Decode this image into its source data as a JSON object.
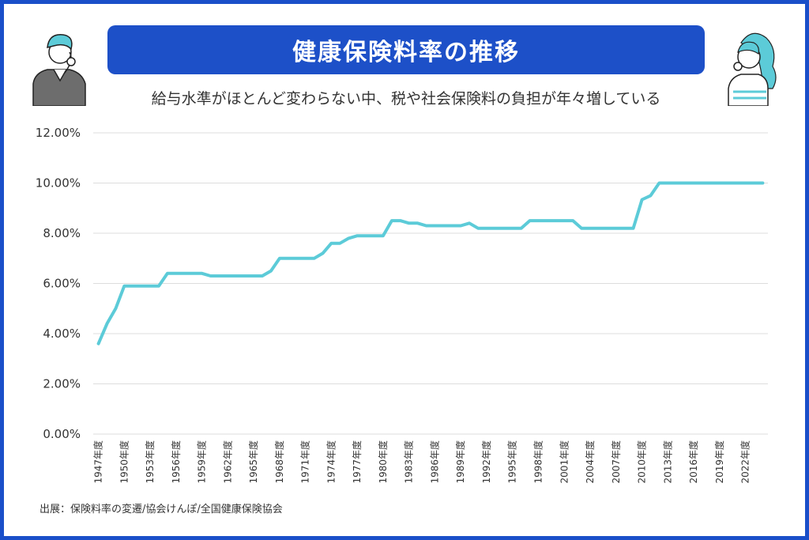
{
  "header": {
    "title": "健康保険料率の推移",
    "subtitle": "給与水準がほとんど変わらない中、税や社会保険料の負担が年々増している"
  },
  "footer": {
    "source": "出展：保険料率の変遷/協会けんぽ/全国健康保険協会"
  },
  "colors": {
    "border": "#1a4fc9",
    "banner": "#1d50c8",
    "line": "#5ccbd8",
    "grid": "#dddddd"
  },
  "icons": [
    "thinking-man-icon",
    "thinking-woman-icon"
  ],
  "chart_data": {
    "type": "line",
    "title": "健康保険料率の推移",
    "xlabel": "",
    "ylabel": "",
    "ylim": [
      0,
      12
    ],
    "grid": true,
    "y_ticks": [
      "0.00%",
      "2.00%",
      "4.00%",
      "6.00%",
      "8.00%",
      "10.00%",
      "12.00%"
    ],
    "x_ticks": [
      "1947年度",
      "1950年度",
      "1953年度",
      "1956年度",
      "1959年度",
      "1962年度",
      "1965年度",
      "1968年度",
      "1971年度",
      "1974年度",
      "1977年度",
      "1980年度",
      "1983年度",
      "1986年度",
      "1989年度",
      "1992年度",
      "1995年度",
      "1998年度",
      "2001年度",
      "2004年度",
      "2007年度",
      "2010年度",
      "2013年度",
      "2016年度",
      "2019年度",
      "2022年度"
    ],
    "series": [
      {
        "x": [
          1947,
          1948,
          1949,
          1950,
          1951,
          1952,
          1953,
          1954,
          1955,
          1956,
          1957,
          1958,
          1959,
          1960,
          1961,
          1962,
          1963,
          1964,
          1965,
          1966,
          1967,
          1968,
          1969,
          1970,
          1971,
          1972,
          1973,
          1974,
          1975,
          1976,
          1977,
          1978,
          1979,
          1980,
          1981,
          1982,
          1983,
          1984,
          1985,
          1986,
          1987,
          1988,
          1989,
          1990,
          1991,
          1992,
          1993,
          1994,
          1995,
          1996,
          1997,
          1998,
          1999,
          2000,
          2001,
          2002,
          2003,
          2004,
          2005,
          2006,
          2007,
          2008,
          2009,
          2010,
          2011,
          2012,
          2013,
          2014,
          2015,
          2016,
          2017,
          2018,
          2019,
          2020,
          2021,
          2022,
          2023,
          2024
        ],
        "values": [
          3.6,
          4.4,
          5.0,
          5.9,
          5.9,
          5.9,
          5.9,
          5.9,
          6.4,
          6.4,
          6.4,
          6.4,
          6.4,
          6.3,
          6.3,
          6.3,
          6.3,
          6.3,
          6.3,
          6.3,
          6.5,
          7.0,
          7.0,
          7.0,
          7.0,
          7.0,
          7.2,
          7.6,
          7.6,
          7.8,
          7.9,
          7.9,
          7.9,
          7.9,
          8.5,
          8.5,
          8.4,
          8.4,
          8.3,
          8.3,
          8.3,
          8.3,
          8.3,
          8.4,
          8.2,
          8.2,
          8.2,
          8.2,
          8.2,
          8.2,
          8.5,
          8.5,
          8.5,
          8.5,
          8.5,
          8.5,
          8.2,
          8.2,
          8.2,
          8.2,
          8.2,
          8.2,
          8.2,
          9.34,
          9.5,
          10.0,
          10.0,
          10.0,
          10.0,
          10.0,
          10.0,
          10.0,
          10.0,
          10.0,
          10.0,
          10.0,
          10.0,
          10.0
        ]
      }
    ]
  }
}
